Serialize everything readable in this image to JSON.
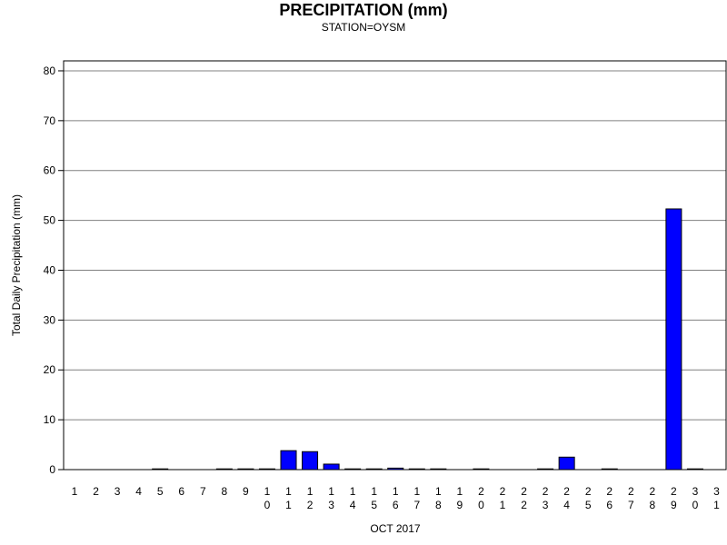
{
  "chart_data": {
    "type": "bar",
    "title": "PRECIPITATION (mm)",
    "subtitle": "STATION=OYSM",
    "ylabel": "Total Daily Precipitation (mm)",
    "xlabel": "OCT 2017",
    "ylim": [
      0,
      82
    ],
    "yticks": [
      0,
      10,
      20,
      30,
      40,
      50,
      60,
      70,
      80
    ],
    "grid": true,
    "bar_color": "#0000ff",
    "categories": [
      "1",
      "2",
      "3",
      "4",
      "5",
      "6",
      "7",
      "8",
      "9",
      "10",
      "11",
      "12",
      "13",
      "14",
      "15",
      "16",
      "17",
      "18",
      "19",
      "20",
      "21",
      "22",
      "23",
      "24",
      "25",
      "26",
      "27",
      "28",
      "29",
      "30",
      "31"
    ],
    "values": [
      null,
      null,
      null,
      null,
      0.1,
      null,
      null,
      0.1,
      0.1,
      0.1,
      3.8,
      3.6,
      1.1,
      0.1,
      0.1,
      0.3,
      0.1,
      0.1,
      null,
      0.1,
      null,
      null,
      0.1,
      2.5,
      null,
      0.1,
      null,
      null,
      52.3,
      0.1,
      null
    ]
  }
}
